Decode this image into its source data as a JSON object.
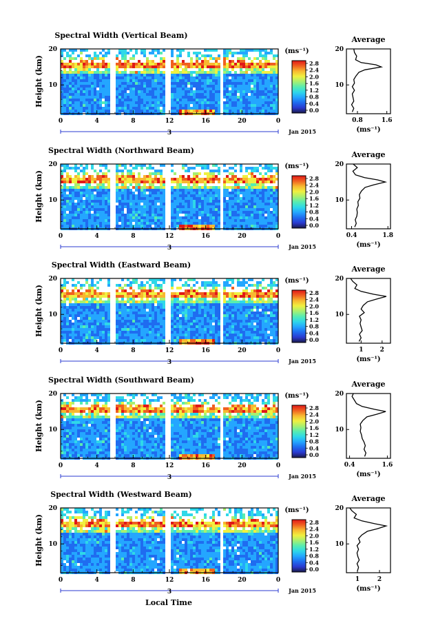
{
  "figure": {
    "xlabel": "Local Time",
    "colorbar_unit": "(ms⁻¹)",
    "colorbar_ticks": [
      "0.0",
      "0.4",
      "0.8",
      "1.2",
      "1.6",
      "2.0",
      "2.4",
      "2.8"
    ],
    "colorbar_range": [
      0.0,
      2.8
    ],
    "date_label": "Jan 2015",
    "day_label": "3",
    "ylabel": "Height (km)",
    "avg_title": "Average",
    "avg_unit": "(ms⁻¹)",
    "colors": {
      "cmap": [
        "#1a1a4a",
        "#2a3ad0",
        "#1f6cf0",
        "#24a6ff",
        "#2fd8e8",
        "#58ecb0",
        "#a8f070",
        "#f0f040",
        "#f8b830",
        "#f06020",
        "#e01818"
      ],
      "data_gaps": "#ffffff",
      "axes": "#000000"
    }
  },
  "chart_data": [
    {
      "type": "heatmap",
      "title": "Spectral Width (Vertical Beam)",
      "x_ticks": [
        "0",
        "4",
        "8",
        "12",
        "16",
        "20",
        "0"
      ],
      "xlim": [
        0,
        24
      ],
      "y_ticks": [
        "20",
        "10"
      ],
      "ylim": [
        2,
        20
      ],
      "gaps_hours": [
        5.8,
        11.8,
        17.8
      ],
      "layer_km": 15.5,
      "average_profile": {
        "x_ticks": [
          "0.8",
          "1.6"
        ],
        "xlim": [
          0.5,
          1.7
        ],
        "y_ticks": [
          "20",
          "10"
        ],
        "ylim": [
          2,
          20
        ],
        "points": [
          [
            0.66,
            2.5
          ],
          [
            0.7,
            3.5
          ],
          [
            0.64,
            4.5
          ],
          [
            0.7,
            5.5
          ],
          [
            0.68,
            6.5
          ],
          [
            0.66,
            7.5
          ],
          [
            0.72,
            8.5
          ],
          [
            0.66,
            9.5
          ],
          [
            0.72,
            10.5
          ],
          [
            0.7,
            11.5
          ],
          [
            0.76,
            12.5
          ],
          [
            0.84,
            13.5
          ],
          [
            1.0,
            14.2
          ],
          [
            1.45,
            15
          ],
          [
            1.3,
            15.6
          ],
          [
            0.9,
            16.2
          ],
          [
            0.75,
            17
          ],
          [
            0.78,
            18
          ],
          [
            0.72,
            19
          ],
          [
            0.7,
            20
          ]
        ]
      }
    },
    {
      "type": "heatmap",
      "title": "Spectral Width (Northward Beam)",
      "x_ticks": [
        "0",
        "4",
        "8",
        "12",
        "16",
        "20",
        "0"
      ],
      "xlim": [
        0,
        24
      ],
      "y_ticks": [
        "20",
        "10"
      ],
      "ylim": [
        2,
        20
      ],
      "gaps_hours": [
        5.8,
        11.8,
        17.8
      ],
      "layer_km": 15.5,
      "average_profile": {
        "x_ticks": [
          "0.4",
          "1.8"
        ],
        "xlim": [
          0.2,
          1.9
        ],
        "y_ticks": [
          "20",
          "10"
        ],
        "ylim": [
          2,
          20
        ],
        "points": [
          [
            0.52,
            2.5
          ],
          [
            0.58,
            3.5
          ],
          [
            0.54,
            4.5
          ],
          [
            0.6,
            5.5
          ],
          [
            0.62,
            6.5
          ],
          [
            0.6,
            7.5
          ],
          [
            0.66,
            8.5
          ],
          [
            0.64,
            9.5
          ],
          [
            0.72,
            10.5
          ],
          [
            0.7,
            11.5
          ],
          [
            0.78,
            12.5
          ],
          [
            0.92,
            13.5
          ],
          [
            1.25,
            14.2
          ],
          [
            1.7,
            15
          ],
          [
            1.4,
            15.6
          ],
          [
            0.9,
            16.2
          ],
          [
            0.55,
            17
          ],
          [
            0.45,
            18
          ],
          [
            0.62,
            19
          ],
          [
            0.46,
            20
          ]
        ]
      }
    },
    {
      "type": "heatmap",
      "title": "Spectral Width (Eastward Beam)",
      "x_ticks": [
        "0",
        "4",
        "8",
        "12",
        "16",
        "20",
        "0"
      ],
      "xlim": [
        0,
        24
      ],
      "y_ticks": [
        "20",
        "10"
      ],
      "ylim": [
        2,
        20
      ],
      "gaps_hours": [
        5.8,
        11.8,
        17.8
      ],
      "layer_km": 15.5,
      "average_profile": {
        "x_ticks": [
          "1",
          "2"
        ],
        "xlim": [
          0.3,
          2.4
        ],
        "y_ticks": [
          "20",
          "10"
        ],
        "ylim": [
          2,
          20
        ],
        "points": [
          [
            0.9,
            2.5
          ],
          [
            1.0,
            3.5
          ],
          [
            0.92,
            4.5
          ],
          [
            1.05,
            5.5
          ],
          [
            1.0,
            6.5
          ],
          [
            0.95,
            7.5
          ],
          [
            1.0,
            8.5
          ],
          [
            0.92,
            9.5
          ],
          [
            1.15,
            10.5
          ],
          [
            1.0,
            11.5
          ],
          [
            1.1,
            12.5
          ],
          [
            1.3,
            13.5
          ],
          [
            1.7,
            14.2
          ],
          [
            2.2,
            15
          ],
          [
            1.6,
            15.6
          ],
          [
            1.0,
            16.4
          ],
          [
            0.7,
            17.2
          ],
          [
            0.8,
            18.2
          ],
          [
            0.6,
            19.2
          ],
          [
            0.5,
            20
          ]
        ]
      }
    },
    {
      "type": "heatmap",
      "title": "Spectral Width (Southward Beam)",
      "x_ticks": [
        "0",
        "4",
        "8",
        "12",
        "16",
        "20",
        "0"
      ],
      "xlim": [
        0,
        24
      ],
      "y_ticks": [
        "20",
        "10"
      ],
      "ylim": [
        2,
        20
      ],
      "gaps_hours": [
        5.8,
        11.8,
        17.8
      ],
      "layer_km": 15.5,
      "average_profile": {
        "x_ticks": [
          "0.4",
          "1.6"
        ],
        "xlim": [
          0.3,
          1.7
        ],
        "y_ticks": [
          "20",
          "10"
        ],
        "ylim": [
          2,
          20
        ],
        "points": [
          [
            0.88,
            2.5
          ],
          [
            0.92,
            3.5
          ],
          [
            0.86,
            4.5
          ],
          [
            0.9,
            5.5
          ],
          [
            0.86,
            6.5
          ],
          [
            0.8,
            7.5
          ],
          [
            0.78,
            8.5
          ],
          [
            0.74,
            9.5
          ],
          [
            0.76,
            10.5
          ],
          [
            0.74,
            11.5
          ],
          [
            0.82,
            12.5
          ],
          [
            0.95,
            13.5
          ],
          [
            1.25,
            14.2
          ],
          [
            1.55,
            15
          ],
          [
            1.2,
            15.6
          ],
          [
            0.8,
            16.4
          ],
          [
            0.62,
            17.2
          ],
          [
            0.55,
            18.2
          ],
          [
            0.48,
            19.2
          ],
          [
            0.52,
            20
          ]
        ]
      }
    },
    {
      "type": "heatmap",
      "title": "Spectral Width (Westward Beam)",
      "x_ticks": [
        "0",
        "4",
        "8",
        "12",
        "16",
        "20",
        "0"
      ],
      "xlim": [
        0,
        24
      ],
      "y_ticks": [
        "20",
        "10"
      ],
      "ylim": [
        2,
        20
      ],
      "gaps_hours": [
        5.8,
        11.8,
        17.8
      ],
      "layer_km": 15.5,
      "average_profile": {
        "x_ticks": [
          "1",
          "2"
        ],
        "xlim": [
          0.5,
          2.5
        ],
        "y_ticks": [
          "20",
          "10"
        ],
        "ylim": [
          2,
          20
        ],
        "points": [
          [
            1.0,
            2.5
          ],
          [
            1.05,
            3.5
          ],
          [
            0.98,
            4.5
          ],
          [
            1.08,
            5.5
          ],
          [
            1.02,
            6.5
          ],
          [
            0.98,
            7.5
          ],
          [
            1.05,
            8.5
          ],
          [
            0.98,
            9.5
          ],
          [
            1.12,
            10.5
          ],
          [
            1.05,
            11.5
          ],
          [
            1.2,
            12.5
          ],
          [
            1.45,
            13.5
          ],
          [
            1.9,
            14.2
          ],
          [
            2.3,
            15
          ],
          [
            1.8,
            15.6
          ],
          [
            1.2,
            16.4
          ],
          [
            0.85,
            17.2
          ],
          [
            0.95,
            18.2
          ],
          [
            0.75,
            19.2
          ],
          [
            0.65,
            20
          ]
        ]
      }
    }
  ]
}
